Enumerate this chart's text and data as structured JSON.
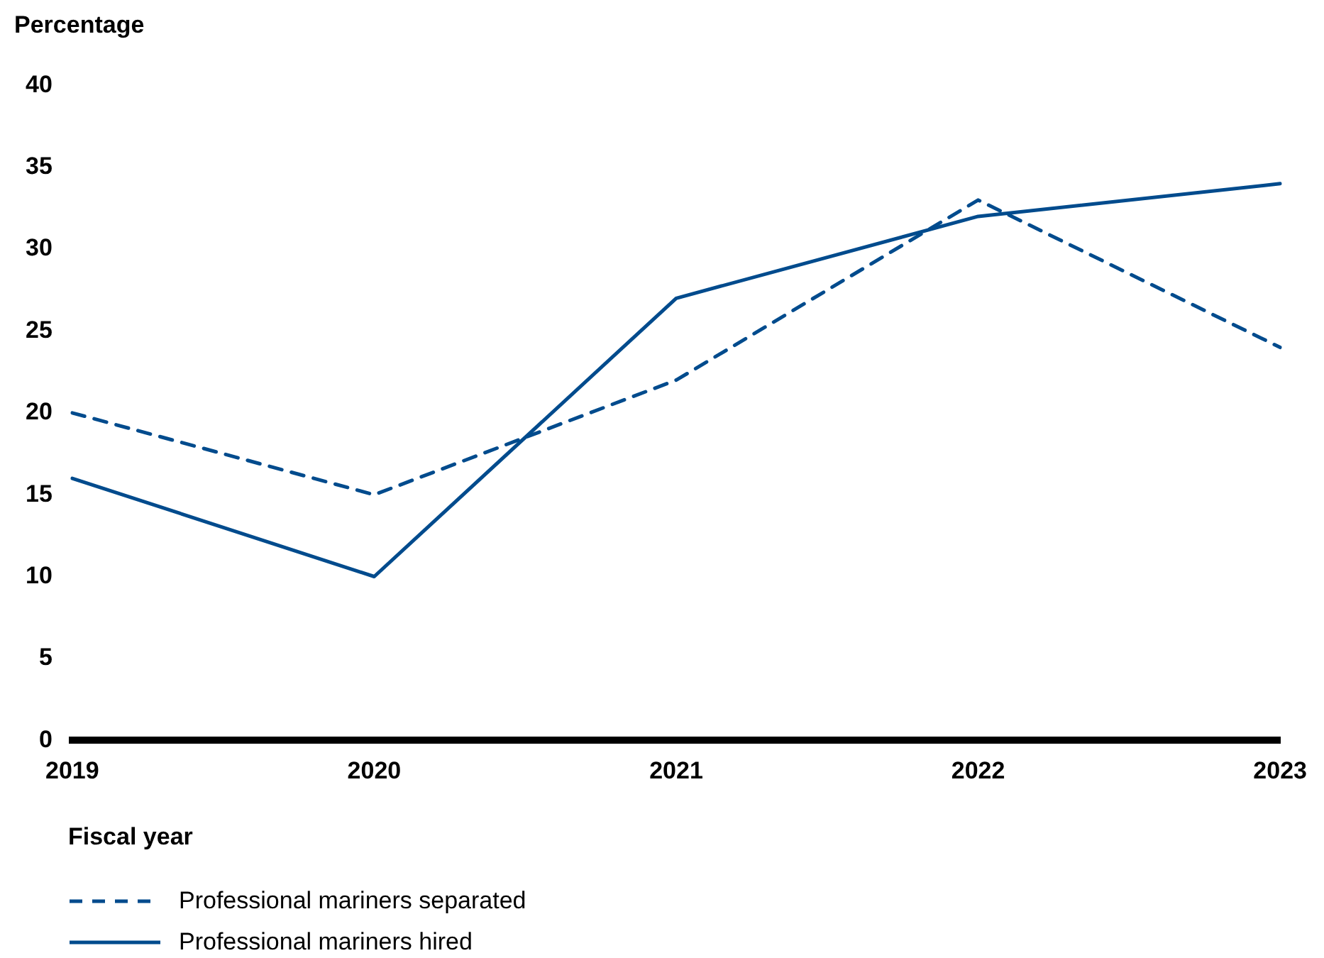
{
  "chart_data": {
    "type": "line",
    "ylabel": "Percentage",
    "xlabel": "Fiscal year",
    "categories": [
      "2019",
      "2020",
      "2021",
      "2022",
      "2023"
    ],
    "series": [
      {
        "name": "Professional mariners separated",
        "color": "#004b8d",
        "line_style": "dashed",
        "values": [
          20,
          15,
          22,
          33,
          24
        ]
      },
      {
        "name": "Professional mariners hired",
        "color": "#004b8d",
        "line_style": "solid",
        "values": [
          16,
          10,
          27,
          32,
          34
        ]
      }
    ],
    "ylim": [
      0,
      40
    ],
    "yticks": [
      0,
      5,
      10,
      15,
      20,
      25,
      30,
      35,
      40
    ],
    "grid": false,
    "legend": "bottom left",
    "marker": "none"
  }
}
